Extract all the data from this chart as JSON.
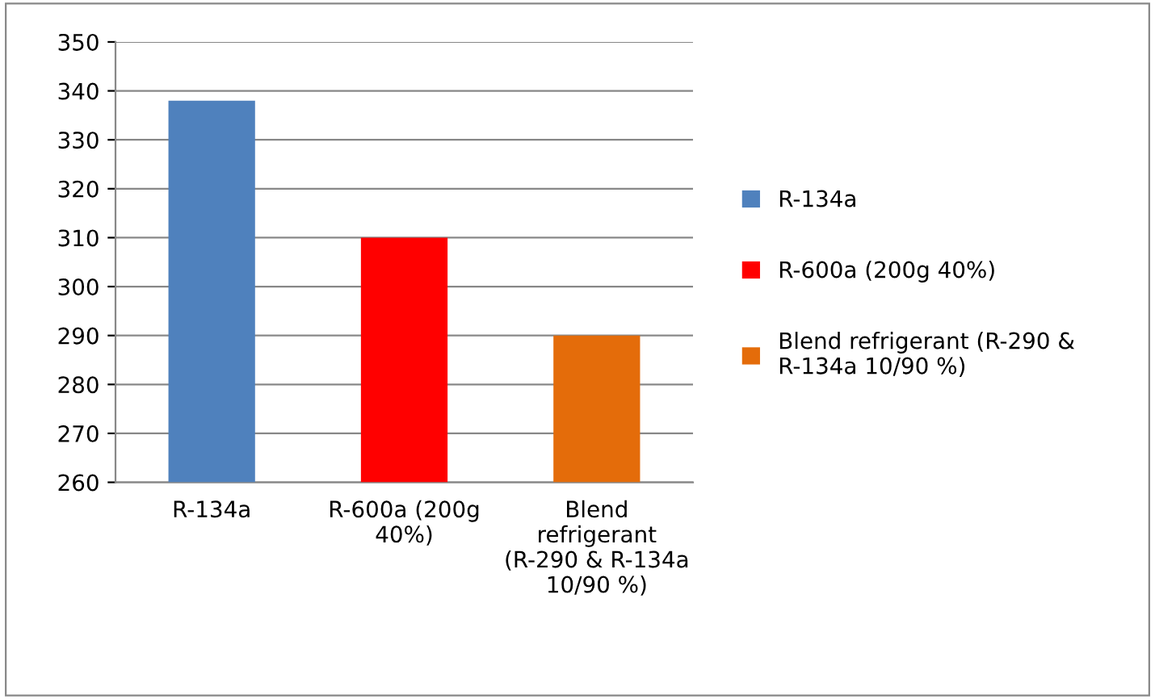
{
  "chart_data": {
    "type": "bar",
    "categories": [
      "R-134a",
      "R-600a (200g 40%)",
      "Blend refrigerant (R-290 & R-134a 10/90 %)"
    ],
    "series": [
      {
        "name": "R-134a",
        "color": "#4f81bd",
        "values": [
          338,
          null,
          null
        ]
      },
      {
        "name": "R-600a (200g 40%)",
        "color": "#ff0000",
        "values": [
          null,
          310,
          null
        ]
      },
      {
        "name": "Blend refrigerant (R-290 & R-134a 10/90 %)",
        "color": "#e46c0a",
        "values": [
          null,
          null,
          290
        ]
      }
    ],
    "ylim": [
      260,
      350
    ],
    "yticks": [
      260,
      270,
      280,
      290,
      300,
      310,
      320,
      330,
      340,
      350
    ],
    "grid": "y",
    "legend": "right"
  }
}
